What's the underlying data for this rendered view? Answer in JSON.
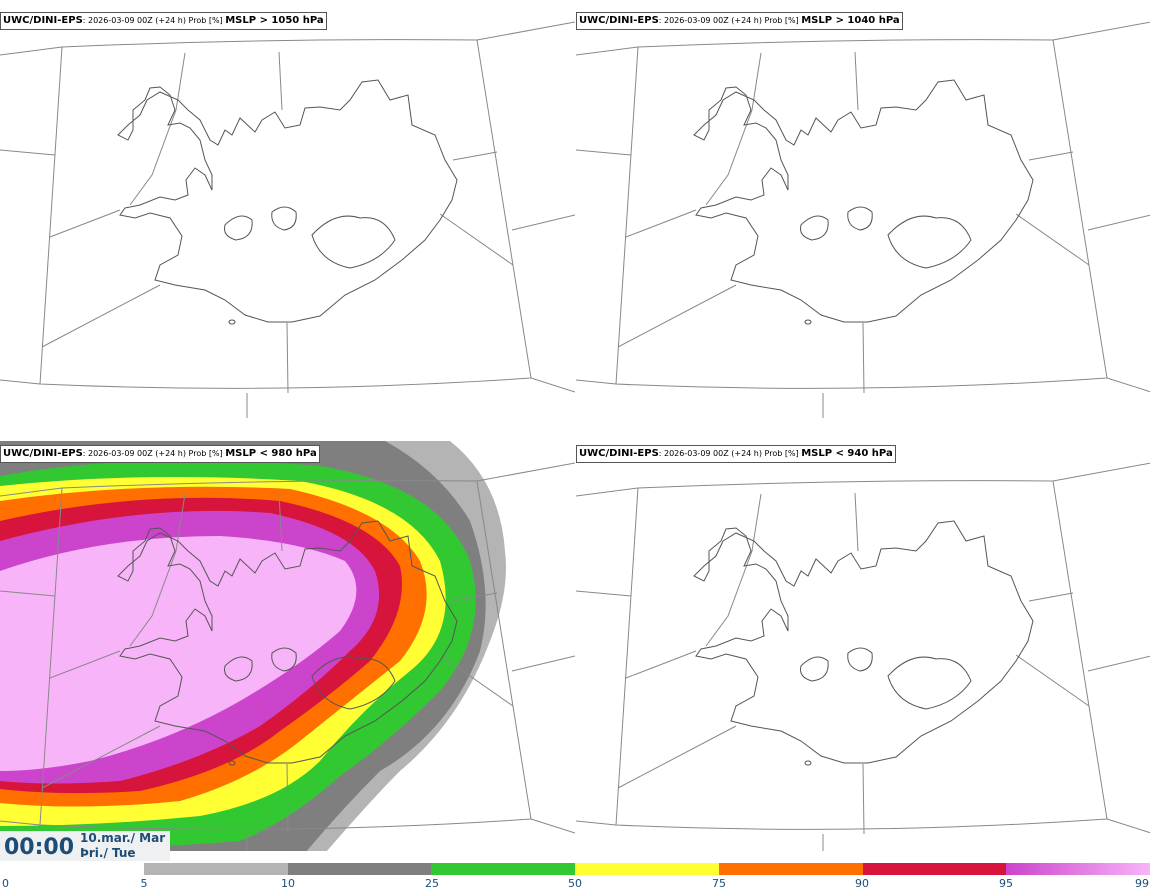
{
  "panels": [
    {
      "model": "UWC/DINI-EPS",
      "meta": ": 2026-03-09 00Z (+24 h) Prob [%] ",
      "field": "MSLP > 1050 hPa",
      "has_prob": false
    },
    {
      "model": "UWC/DINI-EPS",
      "meta": ": 2026-03-09 00Z (+24 h) Prob [%] ",
      "field": "MSLP > 1040 hPa",
      "has_prob": false
    },
    {
      "model": "UWC/DINI-EPS",
      "meta": ": 2026-03-09 00Z (+24 h) Prob [%] ",
      "field": "MSLP < 980 hPa",
      "has_prob": true
    },
    {
      "model": "UWC/DINI-EPS",
      "meta": ": 2026-03-09 00Z (+24 h) Prob [%] ",
      "field": "MSLP < 940 hPa",
      "has_prob": false
    }
  ],
  "valid_time": {
    "hour": "00:00",
    "date_line1": "10.mar./ Mar",
    "date_line2": "Þri./ Tue"
  },
  "colorbar": {
    "ticks": [
      "0",
      "5",
      "10",
      "25",
      "50",
      "75",
      "90",
      "95",
      "99"
    ],
    "bins": [
      {
        "from": 5,
        "to": 10,
        "color": "#b4b4b4"
      },
      {
        "from": 10,
        "to": 25,
        "color": "#7f7f7f"
      },
      {
        "from": 25,
        "to": 50,
        "color": "#32c832"
      },
      {
        "from": 50,
        "to": 75,
        "color": "#ffff33"
      },
      {
        "from": 75,
        "to": 90,
        "color": "#ff7000"
      },
      {
        "from": 90,
        "to": 95,
        "color": "#d7143c"
      },
      {
        "from": 95,
        "to": 99,
        "color": "#cc44cc"
      },
      {
        "from": 99,
        "to": 100,
        "color": "#f8b4f8"
      }
    ]
  },
  "colors": {
    "coastline": "#555555",
    "graticule": "#888888",
    "label": "#1d4c75"
  }
}
